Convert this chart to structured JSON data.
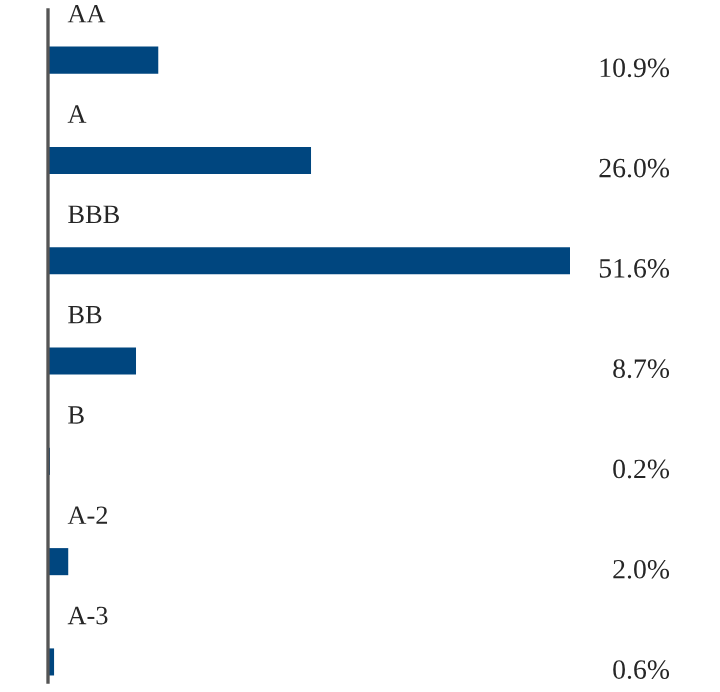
{
  "chart_data": {
    "type": "bar",
    "orientation": "horizontal",
    "categories": [
      "AA",
      "A",
      "BBB",
      "BB",
      "B",
      "A-2",
      "A-3"
    ],
    "values": [
      10.9,
      26.0,
      51.6,
      8.7,
      0.2,
      2.0,
      0.6
    ],
    "value_labels": [
      "10.9%",
      "26.0%",
      "51.6%",
      "8.7%",
      "0.2%",
      "2.0%",
      "0.6%"
    ],
    "color": "#00467f"
  }
}
